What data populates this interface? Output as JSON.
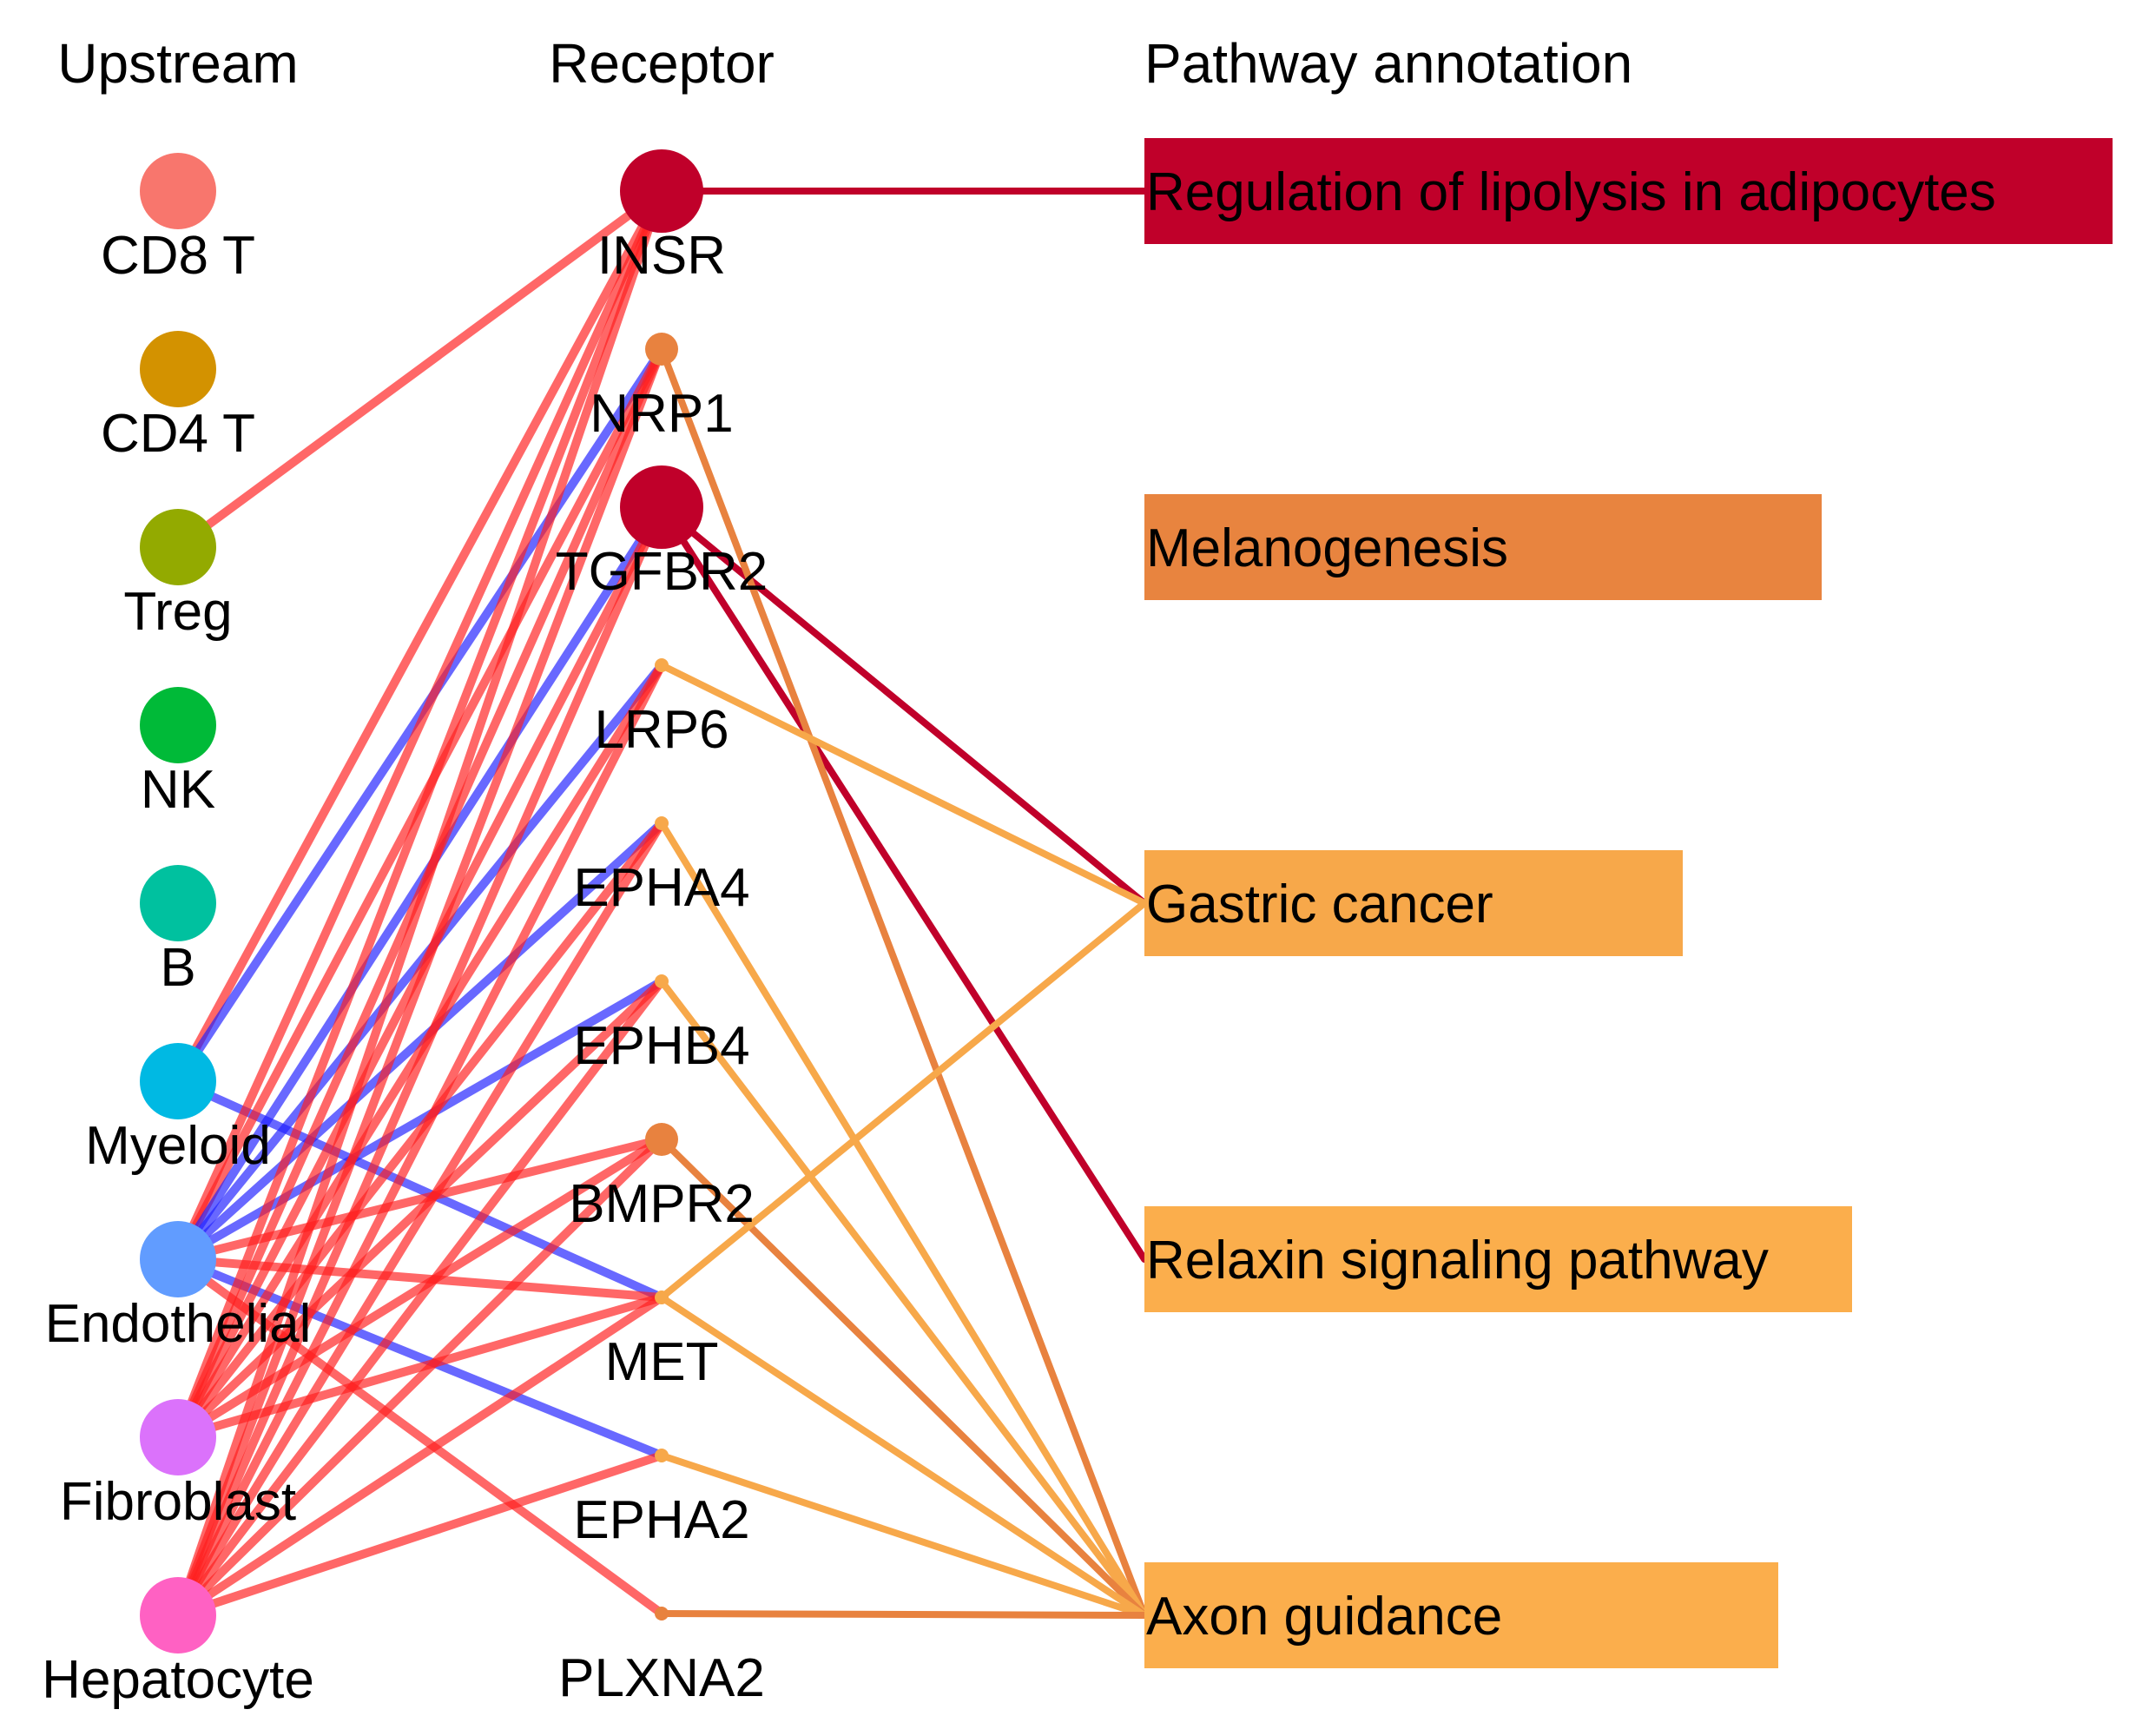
{
  "headers": {
    "upstream": "Upstream",
    "receptor": "Receptor",
    "pathway": "Pathway annotation"
  },
  "link_colors": {
    "red": "#ff1f1f",
    "blue": "#2020ff"
  },
  "upstream": [
    {
      "id": "cd8",
      "label": "CD8 T",
      "color": "#f8766d"
    },
    {
      "id": "cd4",
      "label": "CD4 T",
      "color": "#d39200"
    },
    {
      "id": "treg",
      "label": "Treg",
      "color": "#93aa00"
    },
    {
      "id": "nk",
      "label": "NK",
      "color": "#00ba38"
    },
    {
      "id": "b",
      "label": "B",
      "color": "#00c19f"
    },
    {
      "id": "myeloid",
      "label": "Myeloid",
      "color": "#00b9e3"
    },
    {
      "id": "endothelial",
      "label": "Endothelial",
      "color": "#619cff"
    },
    {
      "id": "fibroblast",
      "label": "Fibroblast",
      "color": "#db72fb"
    },
    {
      "id": "hepatocyte",
      "label": "Hepatocyte",
      "color": "#ff61c3"
    }
  ],
  "receptors": [
    {
      "id": "INSR",
      "label": "INSR",
      "color": "#c0002a",
      "size": "large"
    },
    {
      "id": "NRP1",
      "label": "NRP1",
      "color": "#e8823f",
      "size": "small"
    },
    {
      "id": "TGFBR2",
      "label": "TGFBR2",
      "color": "#c0002a",
      "size": "large"
    },
    {
      "id": "LRP6",
      "label": "LRP6",
      "color": "#f7a84a",
      "size": "tiny"
    },
    {
      "id": "EPHA4",
      "label": "EPHA4",
      "color": "#f7a84a",
      "size": "tiny"
    },
    {
      "id": "EPHB4",
      "label": "EPHB4",
      "color": "#f7a84a",
      "size": "tiny"
    },
    {
      "id": "BMPR2",
      "label": "BMPR2",
      "color": "#e8823f",
      "size": "small"
    },
    {
      "id": "MET",
      "label": "MET",
      "color": "#f7a84a",
      "size": "tiny"
    },
    {
      "id": "EPHA2",
      "label": "EPHA2",
      "color": "#f7a84a",
      "size": "tiny"
    },
    {
      "id": "PLXNA2",
      "label": "PLXNA2",
      "color": "#e8823f",
      "size": "tiny"
    }
  ],
  "pathways": [
    {
      "id": "lipolysis",
      "label": "Regulation of lipolysis in adipocytes",
      "color": "#c0002a"
    },
    {
      "id": "melanogenesis",
      "label": "Melanogenesis",
      "color": "#e8843f"
    },
    {
      "id": "gastric",
      "label": "Gastric cancer",
      "color": "#f7a84a"
    },
    {
      "id": "relaxin",
      "label": "Relaxin signaling pathway",
      "color": "#fbae4c"
    },
    {
      "id": "axon",
      "label": "Axon guidance",
      "color": "#fbae4c"
    }
  ],
  "upstream_links": [
    {
      "from": "treg",
      "to": "INSR",
      "type": "red"
    },
    {
      "from": "myeloid",
      "to": "INSR",
      "type": "red"
    },
    {
      "from": "myeloid",
      "to": "NRP1",
      "type": "blue"
    },
    {
      "from": "myeloid",
      "to": "MET",
      "type": "blue"
    },
    {
      "from": "endothelial",
      "to": "INSR",
      "type": "red"
    },
    {
      "from": "endothelial",
      "to": "NRP1",
      "type": "red"
    },
    {
      "from": "endothelial",
      "to": "TGFBR2",
      "type": "blue"
    },
    {
      "from": "endothelial",
      "to": "LRP6",
      "type": "blue"
    },
    {
      "from": "endothelial",
      "to": "EPHA4",
      "type": "blue"
    },
    {
      "from": "endothelial",
      "to": "EPHB4",
      "type": "blue"
    },
    {
      "from": "endothelial",
      "to": "BMPR2",
      "type": "red"
    },
    {
      "from": "endothelial",
      "to": "MET",
      "type": "red"
    },
    {
      "from": "endothelial",
      "to": "EPHA2",
      "type": "blue"
    },
    {
      "from": "endothelial",
      "to": "PLXNA2",
      "type": "red"
    },
    {
      "from": "fibroblast",
      "to": "INSR",
      "type": "red"
    },
    {
      "from": "fibroblast",
      "to": "NRP1",
      "type": "red"
    },
    {
      "from": "fibroblast",
      "to": "TGFBR2",
      "type": "red"
    },
    {
      "from": "fibroblast",
      "to": "LRP6",
      "type": "red"
    },
    {
      "from": "fibroblast",
      "to": "EPHA4",
      "type": "red"
    },
    {
      "from": "fibroblast",
      "to": "EPHB4",
      "type": "red"
    },
    {
      "from": "fibroblast",
      "to": "BMPR2",
      "type": "red"
    },
    {
      "from": "fibroblast",
      "to": "MET",
      "type": "red"
    },
    {
      "from": "hepatocyte",
      "to": "INSR",
      "type": "red"
    },
    {
      "from": "hepatocyte",
      "to": "NRP1",
      "type": "red"
    },
    {
      "from": "hepatocyte",
      "to": "TGFBR2",
      "type": "red"
    },
    {
      "from": "hepatocyte",
      "to": "LRP6",
      "type": "red"
    },
    {
      "from": "hepatocyte",
      "to": "EPHA4",
      "type": "red"
    },
    {
      "from": "hepatocyte",
      "to": "EPHB4",
      "type": "red"
    },
    {
      "from": "hepatocyte",
      "to": "BMPR2",
      "type": "red"
    },
    {
      "from": "hepatocyte",
      "to": "MET",
      "type": "red"
    },
    {
      "from": "hepatocyte",
      "to": "EPHA2",
      "type": "red"
    }
  ],
  "pathway_links": [
    {
      "from": "INSR",
      "to": "lipolysis",
      "color": "#c0002a"
    },
    {
      "from": "TGFBR2",
      "to": "gastric",
      "color": "#c0002a"
    },
    {
      "from": "TGFBR2",
      "to": "relaxin",
      "color": "#c0002a"
    },
    {
      "from": "NRP1",
      "to": "axon",
      "color": "#e8823f"
    },
    {
      "from": "LRP6",
      "to": "gastric",
      "color": "#f7a84a"
    },
    {
      "from": "EPHA4",
      "to": "axon",
      "color": "#f7a84a"
    },
    {
      "from": "EPHB4",
      "to": "axon",
      "color": "#f7a84a"
    },
    {
      "from": "BMPR2",
      "to": "axon",
      "color": "#e8823f"
    },
    {
      "from": "MET",
      "to": "gastric",
      "color": "#f7a84a"
    },
    {
      "from": "MET",
      "to": "axon",
      "color": "#f7a84a"
    },
    {
      "from": "EPHA2",
      "to": "axon",
      "color": "#f7a84a"
    },
    {
      "from": "PLXNA2",
      "to": "axon",
      "color": "#e8823f"
    }
  ]
}
